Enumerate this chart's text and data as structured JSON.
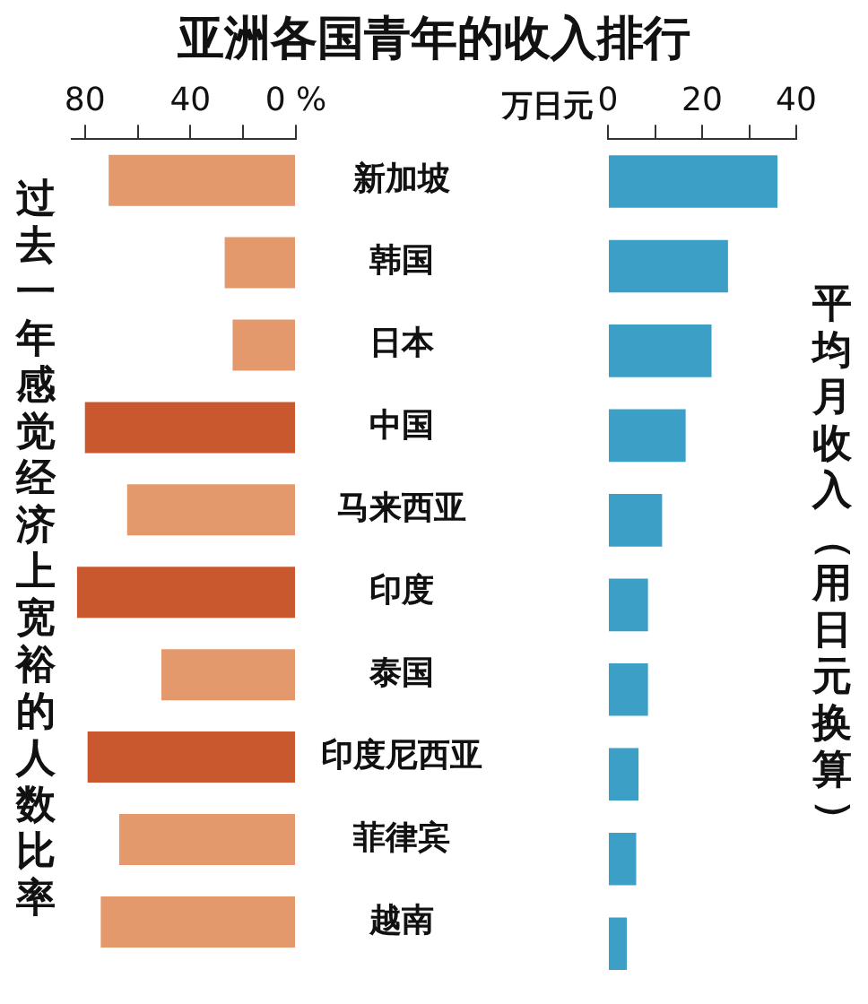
{
  "chart_data": [
    {
      "type": "bar",
      "orientation": "horizontal",
      "title": "亚洲各国青年的收入排行",
      "ylabel": "过去一年感觉经济上宽裕的人数比率",
      "categories": [
        "新加坡",
        "韩国",
        "日本",
        "中国",
        "马来西亚",
        "印度",
        "泰国",
        "印度尼西亚",
        "菲律宾",
        "越南"
      ],
      "values": [
        71,
        27,
        24,
        80,
        64,
        83,
        51,
        79,
        67,
        74
      ],
      "colors": [
        "#e3996c",
        "#e3996c",
        "#e3996c",
        "#c9582e",
        "#e3996c",
        "#c9582e",
        "#e3996c",
        "#c9582e",
        "#e3996c",
        "#e3996c"
      ],
      "xlim": [
        85,
        0
      ],
      "xticks": [
        80,
        {
          "value": 60,
          "label": null
        },
        40,
        {
          "value": 20,
          "label": null
        },
        {
          "value": 0,
          "label": "0 %"
        }
      ],
      "grid": false
    },
    {
      "type": "bar",
      "orientation": "horizontal",
      "xlabel": "万日元",
      "ylabel": "平均月收入（用日元换算）",
      "categories": [
        null,
        null,
        null,
        null,
        null,
        null,
        null,
        null,
        null,
        null
      ],
      "values": [
        36,
        25.5,
        22,
        16.5,
        11.5,
        8.5,
        8.5,
        6.5,
        6,
        4
      ],
      "color": "#3b9fc6",
      "xlim": [
        0,
        40
      ],
      "xticks": [
        0,
        {
          "value": 10,
          "label": null
        },
        20,
        {
          "value": 30,
          "label": null
        },
        40
      ],
      "tick_labels": "x",
      "grid": false
    }
  ]
}
